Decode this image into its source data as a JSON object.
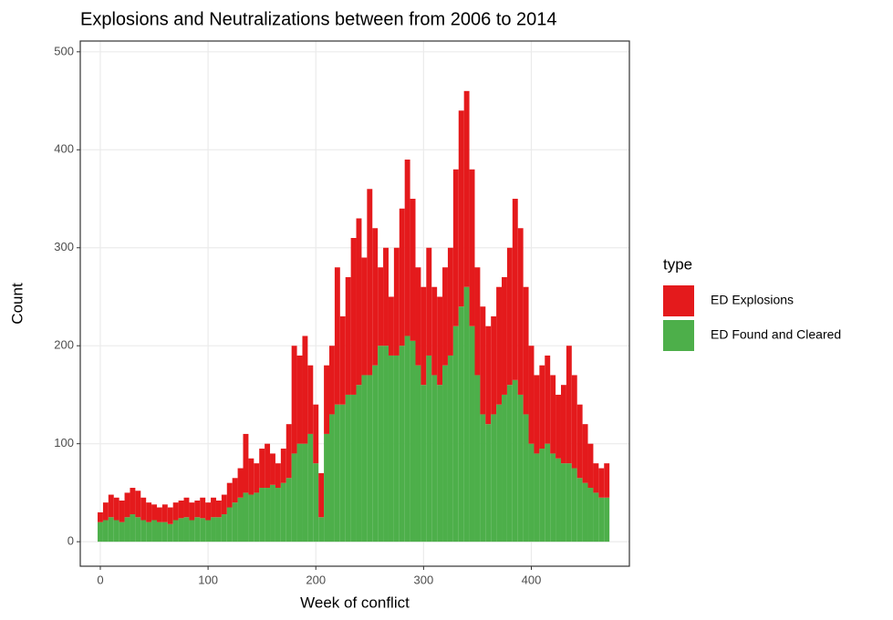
{
  "chart_data": {
    "type": "stacked_bar",
    "title": "Explosions and Neutralizations between from 2006 to 2014",
    "x_label": "Week of conflict",
    "y_label": "Count",
    "legend_title": "type",
    "x": [
      0,
      5,
      10,
      15,
      20,
      25,
      30,
      35,
      40,
      45,
      50,
      55,
      60,
      65,
      70,
      75,
      80,
      85,
      90,
      95,
      100,
      105,
      110,
      115,
      120,
      125,
      130,
      135,
      140,
      145,
      150,
      155,
      160,
      165,
      170,
      175,
      180,
      185,
      190,
      195,
      200,
      205,
      210,
      215,
      220,
      225,
      230,
      235,
      240,
      245,
      250,
      255,
      260,
      265,
      270,
      275,
      280,
      285,
      290,
      295,
      300,
      305,
      310,
      315,
      320,
      325,
      330,
      335,
      340,
      345,
      350,
      355,
      360,
      365,
      370,
      375,
      380,
      385,
      390,
      395,
      400,
      405,
      410,
      415,
      420,
      425,
      430,
      435,
      440,
      445,
      450,
      455,
      460,
      465,
      470
    ],
    "series": [
      {
        "name": "ED Explosions",
        "color": "#e41a1c",
        "values": [
          10,
          18,
          23,
          23,
          22,
          25,
          27,
          27,
          23,
          20,
          16,
          15,
          18,
          17,
          18,
          18,
          20,
          18,
          17,
          21,
          18,
          20,
          17,
          20,
          25,
          25,
          30,
          60,
          37,
          30,
          40,
          45,
          32,
          25,
          35,
          55,
          110,
          90,
          110,
          70,
          60,
          45,
          70,
          70,
          140,
          90,
          120,
          160,
          170,
          120,
          190,
          140,
          80,
          100,
          60,
          110,
          140,
          180,
          145,
          100,
          100,
          110,
          90,
          90,
          100,
          110,
          160,
          200,
          200,
          160,
          110,
          110,
          100,
          100,
          120,
          120,
          140,
          185,
          170,
          130,
          100,
          80,
          85,
          90,
          80,
          65,
          80,
          120,
          95,
          75,
          60,
          45,
          30,
          30,
          35
        ]
      },
      {
        "name": "ED Found and Cleared",
        "color": "#4daf4a",
        "values": [
          20,
          22,
          25,
          22,
          20,
          25,
          28,
          25,
          22,
          20,
          22,
          20,
          20,
          18,
          22,
          24,
          25,
          22,
          25,
          24,
          22,
          25,
          25,
          28,
          35,
          40,
          45,
          50,
          48,
          50,
          55,
          55,
          58,
          55,
          60,
          65,
          90,
          100,
          100,
          110,
          80,
          25,
          110,
          130,
          140,
          140,
          150,
          150,
          160,
          170,
          170,
          180,
          200,
          200,
          190,
          190,
          200,
          210,
          205,
          180,
          160,
          190,
          170,
          160,
          180,
          190,
          220,
          240,
          260,
          220,
          170,
          130,
          120,
          130,
          140,
          150,
          160,
          165,
          150,
          130,
          100,
          90,
          95,
          100,
          90,
          85,
          80,
          80,
          75,
          65,
          60,
          55,
          50,
          45,
          45
        ]
      }
    ],
    "xlim": [
      -18.6,
      491
    ],
    "ylim": [
      -25,
      511
    ],
    "xticks": [
      0,
      100,
      200,
      300,
      400
    ],
    "yticks": [
      0,
      100,
      200,
      300,
      400,
      500
    ],
    "grid": true,
    "legend": "right"
  }
}
